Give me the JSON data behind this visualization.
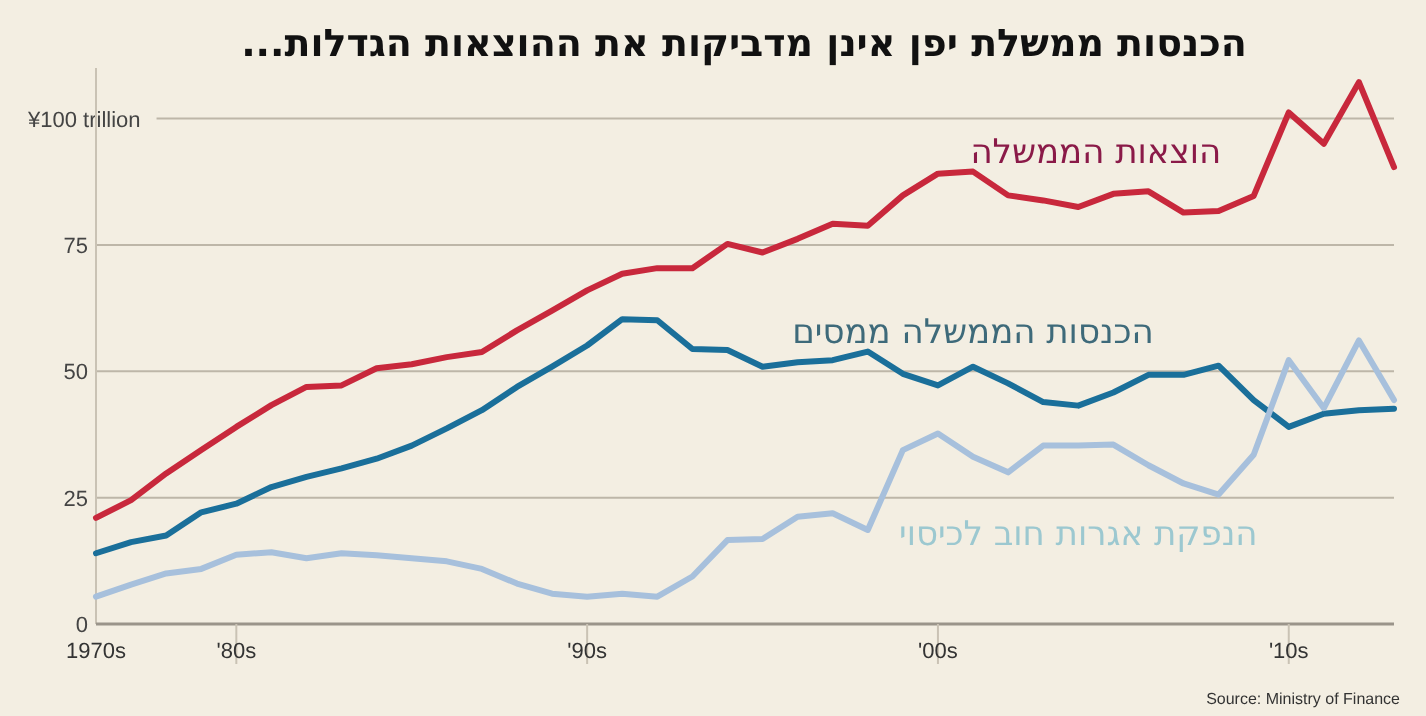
{
  "chart_data": {
    "type": "line",
    "title": "הכנסות ממשלת יפן אינן מדביקות את ההוצאות הגדלות...",
    "categories": [
      "1970s",
      null,
      null,
      null,
      "'80s",
      null,
      null,
      null,
      null,
      null,
      null,
      null,
      null,
      null,
      "'90s",
      null,
      null,
      null,
      null,
      null,
      null,
      null,
      null,
      null,
      "'00s",
      null,
      null,
      null,
      null,
      null,
      null,
      null,
      null,
      null,
      "'10s",
      null,
      null,
      null
    ],
    "series": [
      {
        "name": "הוצאות הממשלה",
        "color": "#c8283c",
        "values": [
          21,
          24.5,
          29.8,
          34.4,
          39,
          43.3,
          46.9,
          47.2,
          50.6,
          51.4,
          52.8,
          53.8,
          58.1,
          62,
          66,
          69.3,
          70.4,
          70.4,
          75.2,
          73.5,
          76.2,
          79.2,
          78.8,
          84.8,
          89.1,
          89.5,
          84.8,
          83.8,
          82.5,
          85.1,
          85.6,
          81.4,
          81.7,
          84.7,
          101.2,
          95,
          107.2,
          90.4
        ]
      },
      {
        "name": "הכנסות הממשלה ממסים",
        "color": "#1a6f9a",
        "values": [
          14,
          16.2,
          17.5,
          22.1,
          23.8,
          27.1,
          29.1,
          30.8,
          32.7,
          35.3,
          38.7,
          42.3,
          46.9,
          50.9,
          55.1,
          60.3,
          60.1,
          54.4,
          54.2,
          50.9,
          51.8,
          52.2,
          53.9,
          49.5,
          47.2,
          50.9,
          47.6,
          43.9,
          43.2,
          45.8,
          49.3,
          49.3,
          51.1,
          44.3,
          39,
          41.6,
          42.3,
          42.6
        ]
      },
      {
        "name": "הנפקת אגרות חוב לכיסוי",
        "color": "#a7c0dc",
        "values": [
          5.4,
          7.8,
          10,
          10.9,
          13.7,
          14.2,
          13,
          14,
          13.6,
          13,
          12.4,
          10.9,
          8,
          6,
          5.4,
          6,
          5.4,
          9.4,
          16.6,
          16.8,
          21.2,
          21.9,
          18.6,
          34.4,
          37.7,
          33.1,
          30,
          35.3,
          35.3,
          35.5,
          31.4,
          27.8,
          25.6,
          33.5,
          52.2,
          42.7,
          56.1,
          44.3
        ]
      }
    ],
    "ylim": [
      0,
      110
    ],
    "yticks": [
      0,
      25,
      50,
      75,
      {
        "value": 100,
        "label": "¥100 trillion"
      }
    ],
    "grid": "y",
    "annotations": [
      "Source: Ministry of Finance"
    ]
  }
}
